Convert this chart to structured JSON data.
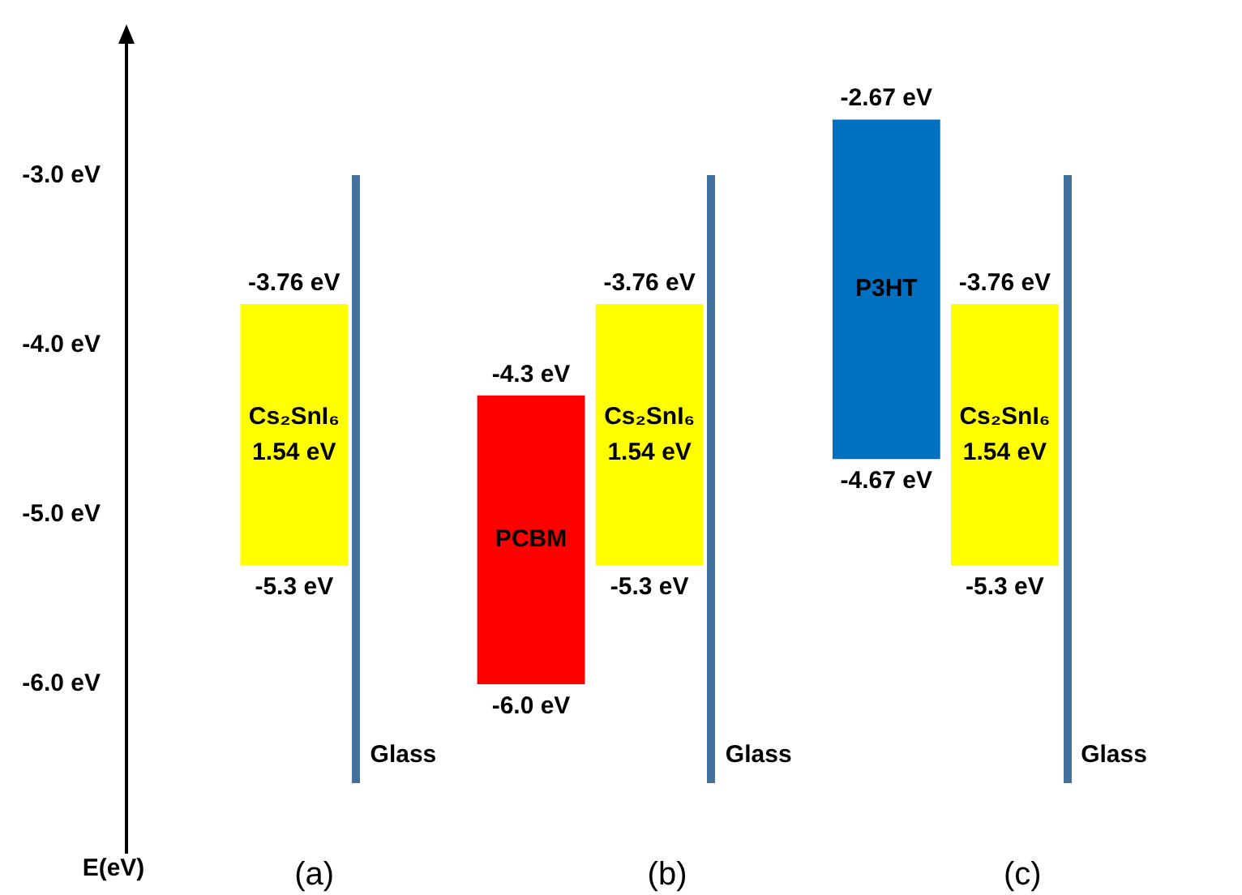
{
  "chart_data": {
    "type": "bar",
    "ylabel": "E(eV)",
    "categories": [
      "Cs₂SnI₆",
      null,
      "PCBM",
      "Cs₂SnI₆",
      null,
      "P3HT",
      "Cs₂SnI₆"
    ],
    "base": [
      -5.3,
      null,
      -6.0,
      -5.3,
      null,
      -4.67,
      -5.3
    ],
    "values": [
      1.54,
      null,
      1.7,
      1.54,
      null,
      2.0,
      1.54
    ],
    "colors": [
      "#ffff00",
      null,
      "#ff0000",
      "#ffff00",
      null,
      "#0070c0",
      "#ffff00"
    ],
    "value_labels": [
      "1.54 eV",
      null,
      null,
      "1.54 eV",
      null,
      null,
      "1.54 eV"
    ],
    "ylim": [
      -7.0,
      -2.2
    ],
    "yticks": [
      {
        "value": -3.0,
        "label": "-3.0 eV"
      },
      {
        "value": -4.0,
        "label": "-4.0 eV"
      },
      {
        "value": -5.0,
        "label": "-5.0 eV"
      },
      {
        "value": -6.0,
        "label": "-6.0 eV"
      }
    ],
    "grid": false,
    "tick_labels": "y",
    "annotations": [
      "(a)",
      "(b)",
      "(c)",
      "Glass",
      "Glass",
      "Glass",
      {
        "text": "-3.76 eV",
        "y": -3.76
      },
      {
        "text": "-5.3 eV",
        "y": -5.3
      },
      {
        "text": "-4.3 eV",
        "y": -4.3
      },
      {
        "text": "-6.0 eV",
        "y": -6.0
      },
      {
        "text": "-3.76 eV",
        "y": -3.76
      },
      {
        "text": "-5.3 eV",
        "y": -5.3
      },
      {
        "text": "-2.67 eV",
        "y": -2.67
      },
      {
        "text": "-4.67 eV",
        "y": -4.67
      },
      {
        "text": "-3.76 eV",
        "y": -3.76
      },
      {
        "text": "-5.3 eV",
        "y": -5.3
      }
    ]
  }
}
